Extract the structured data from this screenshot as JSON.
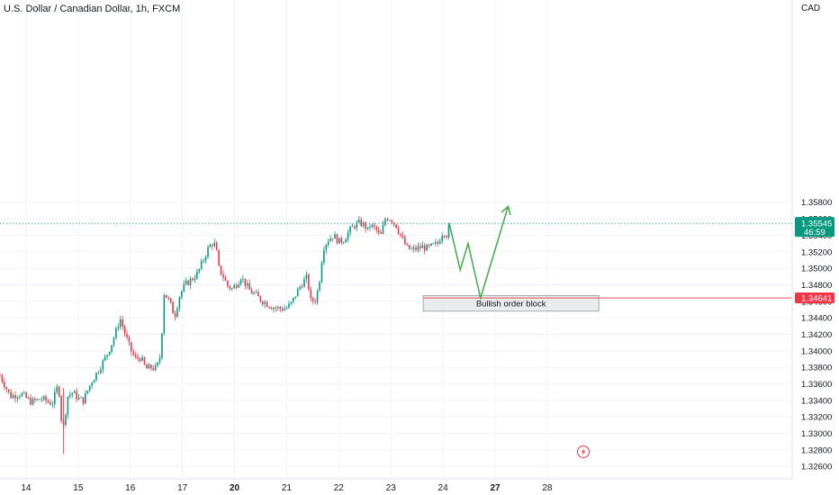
{
  "header": {
    "title": "U.S. Dollar / Canadian Dollar, 1h, FXCM",
    "currency": "CAD"
  },
  "colors": {
    "up": "#089981",
    "down": "#f23645",
    "projection": "#4caf50",
    "current_price_bg": "#089981",
    "level_line": "#f23645",
    "grid": "#f0f3fa"
  },
  "current_price": {
    "value": "1.35545",
    "countdown": "46:59"
  },
  "level_price": {
    "value": "1.34641"
  },
  "order_block": {
    "label": "Bullish order block",
    "top": 1.3467,
    "bottom": 1.3448,
    "x_start": 21.62,
    "x_end": 24.99
  },
  "flash_icon": "lightning-icon",
  "chart_data": {
    "type": "candlestick",
    "title": "U.S. Dollar / Canadian Dollar, 1h, FXCM",
    "ylabel": "CAD",
    "ylim": [
      1.3245,
      1.3825
    ],
    "xlim": [
      13.5,
      28.7
    ],
    "y_ticks": [
      "1.35800",
      "1.35600",
      "1.35400",
      "1.35200",
      "1.35000",
      "1.34800",
      "1.34600",
      "1.34400",
      "1.34200",
      "1.34000",
      "1.33800",
      "1.33600",
      "1.33400",
      "1.33200",
      "1.33000",
      "1.32800",
      "1.32600"
    ],
    "y_tick_values": [
      1.358,
      1.356,
      1.354,
      1.352,
      1.35,
      1.348,
      1.346,
      1.344,
      1.342,
      1.34,
      1.338,
      1.336,
      1.334,
      1.332,
      1.33,
      1.328,
      1.326
    ],
    "x_ticks": [
      {
        "label": "14",
        "day": 14,
        "bold": false
      },
      {
        "label": "15",
        "day": 15,
        "bold": false
      },
      {
        "label": "16",
        "day": 16,
        "bold": false
      },
      {
        "label": "17",
        "day": 17,
        "bold": false
      },
      {
        "label": "20",
        "day": 18,
        "bold": true
      },
      {
        "label": "21",
        "day": 19,
        "bold": false
      },
      {
        "label": "22",
        "day": 20,
        "bold": false
      },
      {
        "label": "23",
        "day": 21,
        "bold": false
      },
      {
        "label": "24",
        "day": 22,
        "bold": false
      },
      {
        "label": "27",
        "day": 23,
        "bold": true
      },
      {
        "label": "28",
        "day": 24,
        "bold": false
      }
    ],
    "price_path": [
      [
        13.5,
        1.337
      ],
      [
        13.7,
        1.3345
      ],
      [
        13.9,
        1.3348
      ],
      [
        14.1,
        1.3338
      ],
      [
        14.3,
        1.3342
      ],
      [
        14.5,
        1.3336
      ],
      [
        14.62,
        1.336
      ],
      [
        14.7,
        1.33
      ],
      [
        14.8,
        1.3345
      ],
      [
        14.9,
        1.335
      ],
      [
        15.0,
        1.3342
      ],
      [
        15.1,
        1.334
      ],
      [
        15.25,
        1.3362
      ],
      [
        15.4,
        1.3378
      ],
      [
        15.55,
        1.3395
      ],
      [
        15.65,
        1.341
      ],
      [
        15.75,
        1.3428
      ],
      [
        15.8,
        1.344
      ],
      [
        15.9,
        1.342
      ],
      [
        16.0,
        1.3402
      ],
      [
        16.1,
        1.339
      ],
      [
        16.2,
        1.3392
      ],
      [
        16.3,
        1.3378
      ],
      [
        16.4,
        1.338
      ],
      [
        16.5,
        1.3378
      ],
      [
        16.58,
        1.3395
      ],
      [
        16.65,
        1.347
      ],
      [
        16.75,
        1.346
      ],
      [
        16.85,
        1.3442
      ],
      [
        16.95,
        1.3468
      ],
      [
        17.05,
        1.348
      ],
      [
        17.2,
        1.3488
      ],
      [
        17.3,
        1.3495
      ],
      [
        17.4,
        1.351
      ],
      [
        17.5,
        1.3525
      ],
      [
        17.6,
        1.3532
      ],
      [
        17.65,
        1.3522
      ],
      [
        17.7,
        1.35
      ],
      [
        17.8,
        1.3488
      ],
      [
        17.85,
        1.348
      ],
      [
        17.95,
        1.3475
      ],
      [
        18.05,
        1.3482
      ],
      [
        18.12,
        1.349
      ],
      [
        18.2,
        1.3482
      ],
      [
        18.3,
        1.3472
      ],
      [
        18.4,
        1.3468
      ],
      [
        18.5,
        1.3462
      ],
      [
        18.6,
        1.3458
      ],
      [
        18.7,
        1.3454
      ],
      [
        18.8,
        1.3452
      ],
      [
        18.9,
        1.3451
      ],
      [
        19.0,
        1.3452
      ],
      [
        19.1,
        1.3458
      ],
      [
        19.2,
        1.3472
      ],
      [
        19.3,
        1.3482
      ],
      [
        19.4,
        1.349
      ],
      [
        19.45,
        1.346
      ],
      [
        19.55,
        1.3462
      ],
      [
        19.62,
        1.348
      ],
      [
        19.7,
        1.3525
      ],
      [
        19.8,
        1.3535
      ],
      [
        19.9,
        1.354
      ],
      [
        20.0,
        1.3532
      ],
      [
        20.1,
        1.3535
      ],
      [
        20.2,
        1.3545
      ],
      [
        20.3,
        1.3552
      ],
      [
        20.4,
        1.3555
      ],
      [
        20.5,
        1.3552
      ],
      [
        20.55,
        1.3545
      ],
      [
        20.6,
        1.3552
      ],
      [
        20.7,
        1.3548
      ],
      [
        20.8,
        1.3538
      ],
      [
        20.9,
        1.3562
      ],
      [
        21.0,
        1.356
      ],
      [
        21.1,
        1.3552
      ],
      [
        21.2,
        1.3538
      ],
      [
        21.3,
        1.3525
      ],
      [
        21.4,
        1.3522
      ],
      [
        21.5,
        1.3524
      ],
      [
        21.6,
        1.3526
      ],
      [
        21.7,
        1.3524
      ],
      [
        21.8,
        1.3527
      ],
      [
        21.9,
        1.353
      ],
      [
        22.0,
        1.3545
      ],
      [
        22.08,
        1.354
      ],
      [
        22.12,
        1.3552
      ]
    ],
    "projection": {
      "points": [
        [
          22.12,
          1.35545
        ],
        [
          22.33,
          1.3498
        ],
        [
          22.48,
          1.353
        ],
        [
          22.72,
          1.3464
        ],
        [
          23.25,
          1.3575
        ]
      ],
      "arrow_end": [
        23.25,
        1.3575
      ]
    }
  }
}
